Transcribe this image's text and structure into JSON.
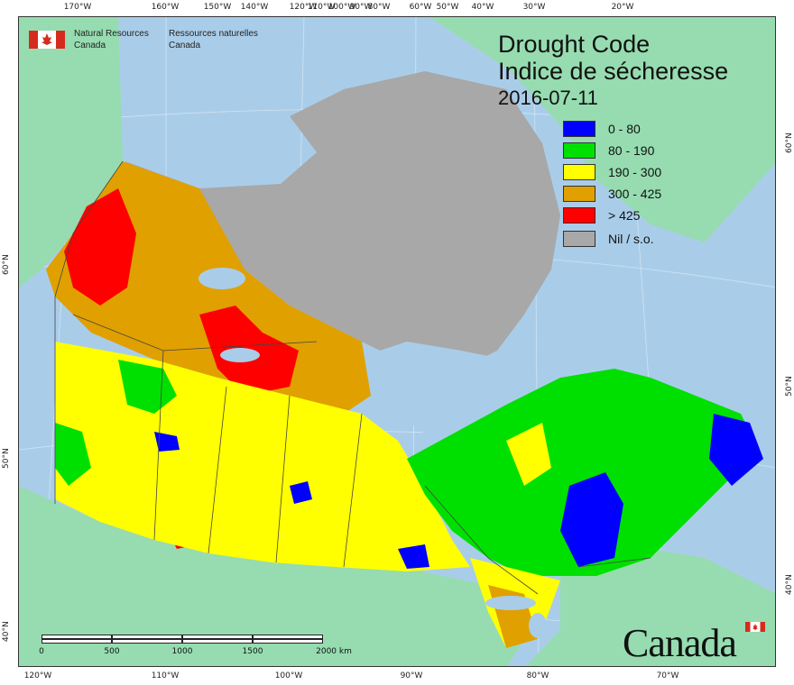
{
  "title": {
    "en": "Drought Code",
    "fr": "Indice de sécheresse",
    "date": "2016-07-11"
  },
  "agency": {
    "en_line1": "Natural Resources",
    "en_line2": "Canada",
    "fr_line1": "Ressources naturelles",
    "fr_line2": "Canada"
  },
  "wordmark": "Canada",
  "legend": [
    {
      "label": "0 - 80",
      "color": "#0000ff"
    },
    {
      "label": "80 - 190",
      "color": "#00e000"
    },
    {
      "label": "190 - 300",
      "color": "#ffff00"
    },
    {
      "label": "300 - 425",
      "color": "#e0a000"
    },
    {
      "label": "> 425",
      "color": "#ff0000"
    },
    {
      "label": "Nil / s.o.",
      "color": "#a8a8a8"
    }
  ],
  "colors": {
    "ocean": "#a9cde9",
    "foreign_land": "#96dcb0",
    "nil": "#a8a8a8",
    "border": "#444444"
  },
  "graticule": {
    "top": [
      "170°W",
      "160°W",
      "150°W",
      "140°W",
      "120°W",
      "110°W",
      "100°W",
      "90°W",
      "80°W",
      "60°W",
      "50°W",
      "40°W",
      "30°W",
      "20°W"
    ],
    "bottom": [
      "120°W",
      "110°W",
      "100°W",
      "90°W",
      "80°W",
      "70°W"
    ],
    "left": [
      "60°N",
      "50°N",
      "40°N"
    ],
    "right": [
      "60°N",
      "50°N",
      "40°N"
    ]
  },
  "scale": {
    "labels": [
      "0",
      "500",
      "1000",
      "1500",
      "2000 km"
    ]
  }
}
